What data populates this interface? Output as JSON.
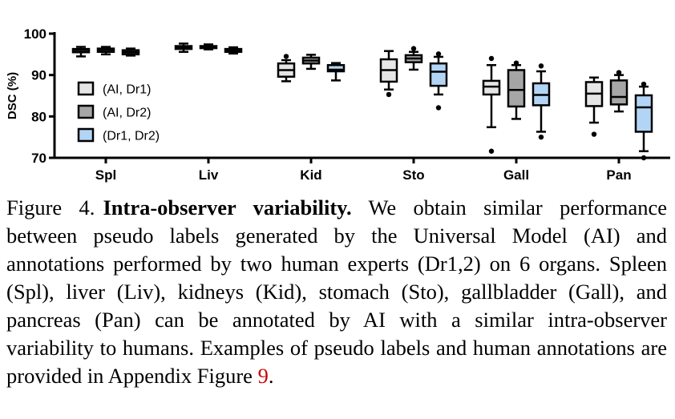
{
  "chart_data": {
    "type": "boxplot",
    "ylabel": "DSC (%)",
    "ylim": [
      70,
      100
    ],
    "yticks": [
      "70",
      "80",
      "90",
      "100"
    ],
    "categories": [
      "Spl",
      "Liv",
      "Kid",
      "Sto",
      "Gall",
      "Pan"
    ],
    "legend": {
      "position": "left-middle",
      "entries": [
        "(AI, Dr1)",
        "(AI, Dr2)",
        "(Dr1, Dr2)"
      ]
    },
    "series": [
      {
        "name": "(AI, Dr1)",
        "color": "#e6e6e6",
        "boxes": [
          {
            "whisker_low": 94.5,
            "q1": 95.5,
            "median": 96.0,
            "q3": 96.3,
            "whisker_high": 96.8,
            "outliers": []
          },
          {
            "whisker_low": 95.6,
            "q1": 96.3,
            "median": 96.7,
            "q3": 97.0,
            "whisker_high": 97.6,
            "outliers": []
          },
          {
            "whisker_low": 88.5,
            "q1": 89.6,
            "median": 91.2,
            "q3": 92.8,
            "whisker_high": 93.6,
            "outliers": [
              94.5
            ]
          },
          {
            "whisker_low": 86.5,
            "q1": 88.4,
            "median": 91.2,
            "q3": 93.8,
            "whisker_high": 95.8,
            "outliers": [
              85.3
            ]
          },
          {
            "whisker_low": 77.4,
            "q1": 85.3,
            "median": 87.2,
            "q3": 88.6,
            "whisker_high": 92.4,
            "outliers": [
              71.6,
              94.0
            ]
          },
          {
            "whisker_low": 78.5,
            "q1": 82.5,
            "median": 85.5,
            "q3": 88.3,
            "whisker_high": 89.4,
            "outliers": [
              75.7
            ]
          }
        ]
      },
      {
        "name": "(AI, Dr2)",
        "color": "#a6a6a6",
        "boxes": [
          {
            "whisker_low": 95.0,
            "q1": 95.6,
            "median": 96.1,
            "q3": 96.4,
            "whisker_high": 96.8,
            "outliers": []
          },
          {
            "whisker_low": 96.2,
            "q1": 96.5,
            "median": 96.8,
            "q3": 97.0,
            "whisker_high": 97.4,
            "outliers": []
          },
          {
            "whisker_low": 91.5,
            "q1": 92.8,
            "median": 93.5,
            "q3": 94.2,
            "whisker_high": 94.9,
            "outliers": []
          },
          {
            "whisker_low": 91.3,
            "q1": 93.1,
            "median": 94.0,
            "q3": 94.8,
            "whisker_high": 95.6,
            "outliers": [
              96.4
            ]
          },
          {
            "whisker_low": 79.4,
            "q1": 82.4,
            "median": 86.4,
            "q3": 91.2,
            "whisker_high": 92.4,
            "outliers": [
              92.9
            ]
          },
          {
            "whisker_low": 81.2,
            "q1": 82.9,
            "median": 84.7,
            "q3": 88.7,
            "whisker_high": 90.0,
            "outliers": [
              90.6
            ]
          }
        ]
      },
      {
        "name": "(Dr1, Dr2)",
        "color": "#b3d5f5",
        "boxes": [
          {
            "whisker_low": 94.7,
            "q1": 95.0,
            "median": 95.5,
            "q3": 96.0,
            "whisker_high": 96.4,
            "outliers": []
          },
          {
            "whisker_low": 95.2,
            "q1": 95.6,
            "median": 96.0,
            "q3": 96.3,
            "whisker_high": 96.7,
            "outliers": []
          },
          {
            "whisker_low": 88.7,
            "q1": 90.9,
            "median": 91.3,
            "q3": 92.4,
            "whisker_high": 92.9,
            "outliers": []
          },
          {
            "whisker_low": 85.3,
            "q1": 87.4,
            "median": 90.8,
            "q3": 92.8,
            "whisker_high": 94.4,
            "outliers": [
              82.1,
              95.1
            ]
          },
          {
            "whisker_low": 76.3,
            "q1": 82.7,
            "median": 85.2,
            "q3": 88.0,
            "whisker_high": 90.9,
            "outliers": [
              75.0,
              92.2
            ]
          },
          {
            "whisker_low": 71.6,
            "q1": 76.3,
            "median": 82.2,
            "q3": 85.1,
            "whisker_high": 87.2,
            "outliers": [
              70.0,
              87.8
            ]
          }
        ]
      }
    ]
  },
  "caption": {
    "label": "Figure 4.",
    "bold": "Intra-observer variability.",
    "text": " We obtain similar performance between pseudo labels generated by the Universal Model (AI) and annotations performed by two human experts (Dr1,2) on 6 organs. Spleen (Spl), liver (Liv), kidneys (Kid), stomach (Sto), gallbladder (Gall), and pancreas (Pan) can be annotated by AI with a similar intra-observer variability to humans. Examples of pseudo labels and human annotations are provided in Appendix Figure ",
    "ref": "9",
    "end": "."
  }
}
